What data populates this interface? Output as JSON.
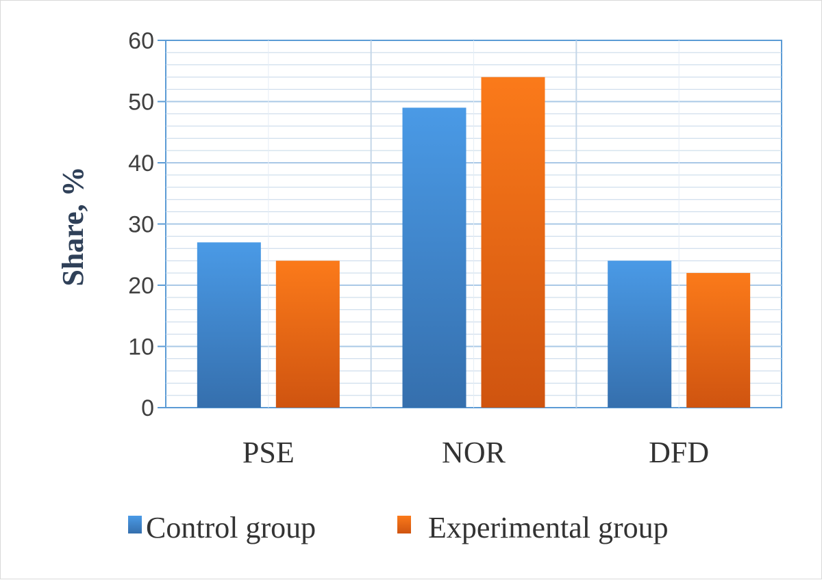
{
  "chart_data": {
    "type": "bar",
    "categories": [
      "PSE",
      "NOR",
      "DFD"
    ],
    "series": [
      {
        "name": "Control group",
        "values": [
          27,
          49,
          24
        ],
        "color": "#3f86cc"
      },
      {
        "name": "Experimental group",
        "values": [
          24,
          54,
          22
        ],
        "color": "#ea6a12"
      }
    ],
    "title": "",
    "xlabel": "",
    "ylabel": "Share, %",
    "ylim": [
      0,
      60
    ],
    "y_ticks": [
      0,
      10,
      20,
      30,
      40,
      50,
      60
    ],
    "y_tick_labels": [
      "0",
      "10",
      "20",
      "30",
      "40",
      "50",
      "60"
    ],
    "grid": true,
    "legend_position": "bottom"
  }
}
